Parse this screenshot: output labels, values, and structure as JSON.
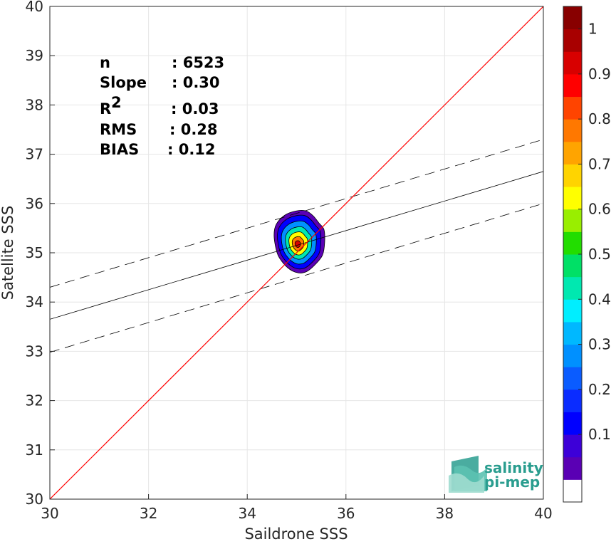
{
  "chart_data": {
    "type": "scatter",
    "subtype": "density-contour",
    "xlabel": "Saildrone SSS",
    "ylabel": "Satellite SSS",
    "xlim": [
      30,
      40
    ],
    "ylim": [
      30,
      40
    ],
    "xticks": [
      "30",
      "32",
      "34",
      "36",
      "38",
      "40"
    ],
    "yticks": [
      "30",
      "31",
      "32",
      "33",
      "34",
      "35",
      "36",
      "37",
      "38",
      "39",
      "40"
    ],
    "grid": true,
    "stats": [
      {
        "key": "n",
        "value": ": 6523"
      },
      {
        "key": "Slope",
        "value": ": 0.30"
      },
      {
        "key": "R",
        "sup": "2",
        "value": ": 0.03"
      },
      {
        "key": "RMS",
        "value": ": 0.28"
      },
      {
        "key": "BIAS",
        "value": ": 0.12"
      }
    ],
    "one_to_one_line": {
      "x": [
        30,
        40
      ],
      "y": [
        30,
        40
      ],
      "color": "#ff0000"
    },
    "regression_line": {
      "x": [
        30,
        40
      ],
      "y": [
        33.65,
        36.65
      ],
      "color": "#000000"
    },
    "regression_bounds": [
      {
        "x": [
          30,
          40
        ],
        "y": [
          34.3,
          37.3
        ],
        "dash": true
      },
      {
        "x": [
          30,
          40
        ],
        "y": [
          32.98,
          36.0
        ],
        "dash": true
      }
    ],
    "density_peak": {
      "x": 35.02,
      "y": 35.17
    },
    "density_levels": [
      0.05,
      0.2,
      0.35,
      0.5,
      0.65,
      0.8,
      0.95
    ],
    "colorbar": {
      "ticks": [
        "0.1",
        "0.2",
        "0.3",
        "0.4",
        "0.5",
        "0.6",
        "0.7",
        "0.8",
        "0.9",
        "1"
      ],
      "colors": [
        "#ffffff",
        "#5a00b4",
        "#3d00d8",
        "#0000ff",
        "#0a2cff",
        "#0a5cff",
        "#0090ff",
        "#00b8ff",
        "#00eeff",
        "#00e8b0",
        "#00e066",
        "#22dd00",
        "#99ee00",
        "#ffff00",
        "#ffd400",
        "#ffa400",
        "#ff7800",
        "#ff4400",
        "#ff0000",
        "#d80000",
        "#a80000",
        "#880000"
      ]
    }
  },
  "logo": {
    "line1": "salinity",
    "line2": "pi-mep"
  }
}
